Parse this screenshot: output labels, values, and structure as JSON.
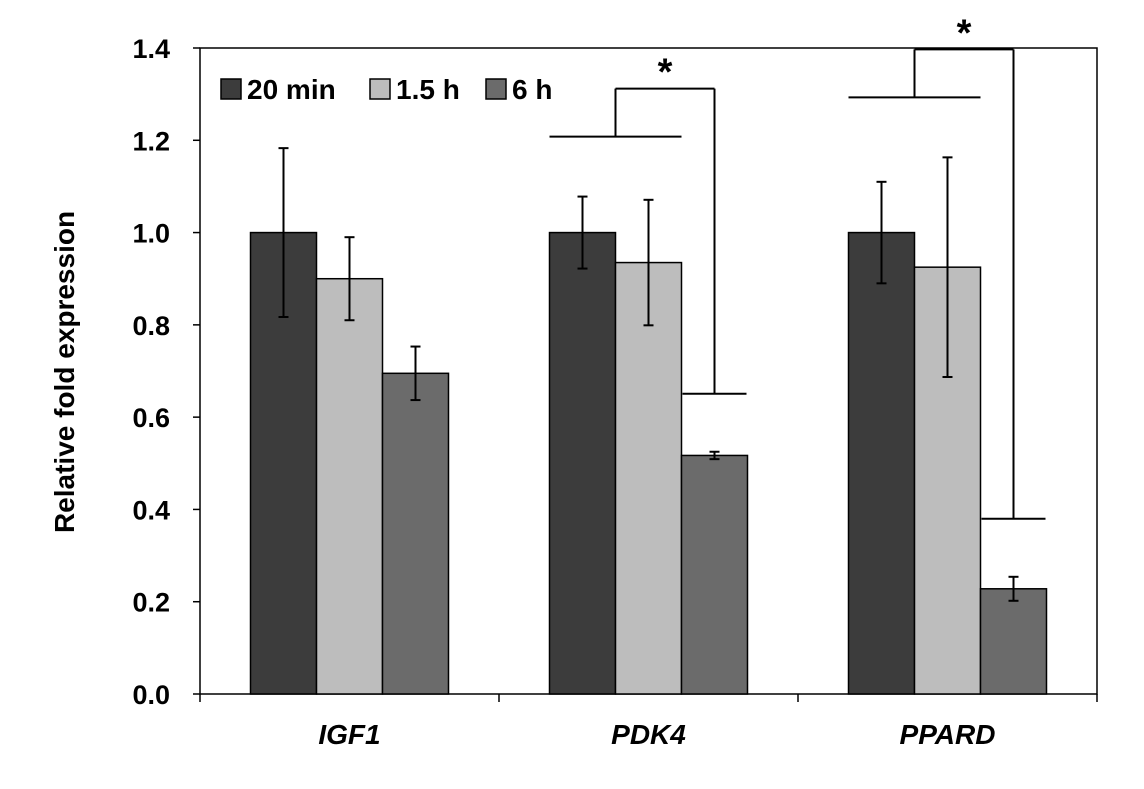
{
  "chart_data": {
    "type": "bar",
    "title": "",
    "xlabel": "",
    "ylabel": "Relative fold expression",
    "ylim": [
      0,
      1.4
    ],
    "yticks": [
      "0.0",
      "0.2",
      "0.4",
      "0.6",
      "0.8",
      "1.0",
      "1.2",
      "1.4"
    ],
    "categories": [
      "IGF1",
      "PDK4",
      "PPARD"
    ],
    "series": [
      {
        "name": "20 min",
        "color": "#3c3c3c",
        "values": [
          1.0,
          1.0,
          1.0
        ],
        "errors": [
          0.183,
          0.078,
          0.11
        ]
      },
      {
        "name": "1.5 h",
        "color": "#bdbdbd",
        "values": [
          0.9,
          0.935,
          0.925
        ],
        "errors": [
          0.09,
          0.136,
          0.238
        ]
      },
      {
        "name": "6 h",
        "color": "#6b6b6b",
        "values": [
          0.695,
          0.517,
          0.228
        ],
        "errors": [
          0.058,
          0.008,
          0.026
        ]
      }
    ],
    "legend": {
      "placement": "top-left"
    },
    "significance": [
      {
        "category": "PDK4",
        "compare": [
          "20 min + 1.5 h",
          "6 h"
        ],
        "label": "*"
      },
      {
        "category": "PPARD",
        "compare": [
          "20 min + 1.5 h",
          "6 h"
        ],
        "label": "*"
      }
    ],
    "grid": false
  }
}
